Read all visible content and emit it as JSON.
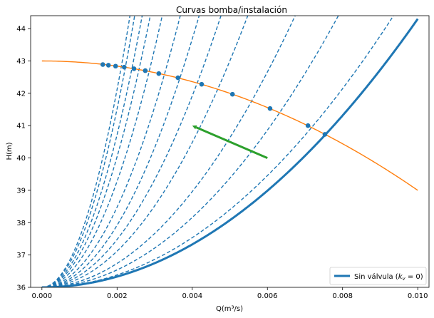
{
  "chart_data": {
    "type": "line",
    "title": "Curvas bomba/instalación",
    "xlabel": "Q(m³/s)",
    "ylabel": "H(m)",
    "xlim": [
      -0.0003,
      0.0103
    ],
    "ylim": [
      36,
      44.4
    ],
    "xticks": [
      0.0,
      0.002,
      0.004,
      0.006,
      0.008,
      0.01
    ],
    "xtick_labels": [
      "0.000",
      "0.002",
      "0.004",
      "0.006",
      "0.008",
      "0.010"
    ],
    "yticks": [
      36,
      37,
      38,
      39,
      40,
      41,
      42,
      43,
      44
    ],
    "ytick_labels": [
      "36",
      "37",
      "38",
      "39",
      "40",
      "41",
      "42",
      "43",
      "44"
    ],
    "grid": false,
    "legend_position": "lower-right",
    "colors": {
      "system": "#1f77b4",
      "pump": "#ff7f0e",
      "arrow": "#2ca02c"
    },
    "pump_curve": {
      "x_range": [
        0.0,
        0.01
      ],
      "H0": 43.0,
      "b": 40000
    },
    "system_curves": {
      "H_static": 36.0,
      "k_values": [
        83000,
        96000,
        135000,
        185000,
        280000,
        370000,
        480000,
        620000,
        820000,
        1010000,
        1180000,
        1380000,
        1530000
      ]
    },
    "series": [
      {
        "name": "Sin válvula ($k_v = 0$)",
        "style": "solid",
        "k": 83000
      }
    ],
    "legend": [
      {
        "label": "Sin válvula (",
        "math": "k",
        "sub": "v",
        "tail": " = 0)"
      }
    ],
    "operating_points": [
      {
        "x": 0.00753,
        "y": 40.73
      },
      {
        "x": 0.00708,
        "y": 41.0
      },
      {
        "x": 0.00607,
        "y": 41.53
      },
      {
        "x": 0.00507,
        "y": 41.97
      },
      {
        "x": 0.00425,
        "y": 42.28
      },
      {
        "x": 0.00362,
        "y": 42.48
      },
      {
        "x": 0.00311,
        "y": 42.61
      },
      {
        "x": 0.00275,
        "y": 42.7
      },
      {
        "x": 0.00245,
        "y": 42.76
      },
      {
        "x": 0.00219,
        "y": 42.81
      },
      {
        "x": 0.00196,
        "y": 42.84
      },
      {
        "x": 0.00177,
        "y": 42.87
      },
      {
        "x": 0.00162,
        "y": 42.89
      }
    ],
    "arrow": {
      "from": [
        0.006,
        40.0
      ],
      "to": [
        0.004,
        41.0
      ]
    }
  }
}
